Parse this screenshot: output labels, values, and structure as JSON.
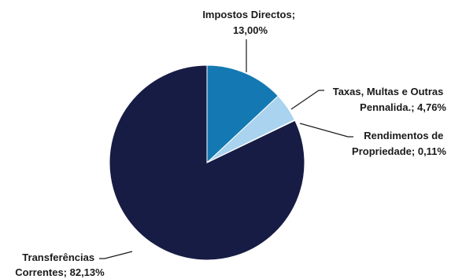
{
  "chart_data": {
    "type": "pie",
    "title": "",
    "slices": [
      {
        "label_lines": [
          "Impostos Directos;",
          "13,00%"
        ],
        "value": 13.0,
        "color": "#1479b3"
      },
      {
        "label_lines": [
          "Taxas, Multas e Outras",
          "Pennalida.; 4,76%"
        ],
        "value": 4.76,
        "color": "#a9d3ee"
      },
      {
        "label_lines": [
          "Rendimentos de",
          "Propriedade; 0,11%"
        ],
        "value": 0.11,
        "color": "#1f4f86"
      },
      {
        "label_lines": [
          "Transferências",
          "Correntes; 82,13%"
        ],
        "value": 82.13,
        "color": "#171c44"
      }
    ],
    "start_position": "12 o'clock, clockwise",
    "legend": "none"
  }
}
